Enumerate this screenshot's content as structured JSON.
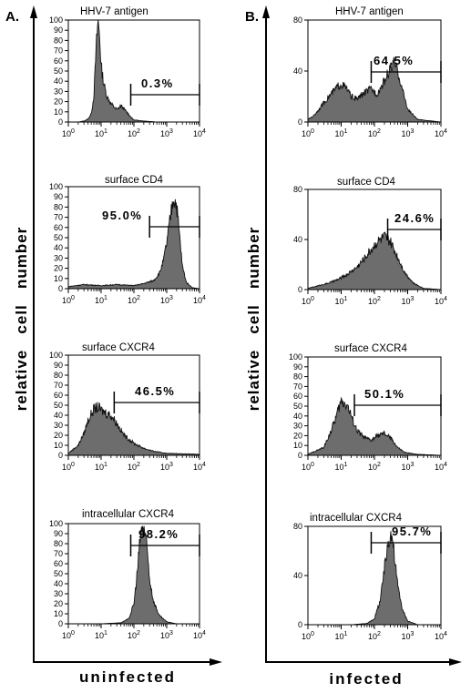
{
  "figure": {
    "panel_a_label": "A.",
    "panel_b_label": "B.",
    "y_axis_label": "relative   cell   number",
    "x_label_a": "uninfected",
    "x_label_b": "infected"
  },
  "chart_data": [
    {
      "type": "area",
      "panel": "A",
      "title": "HHV-7 antigen",
      "marker_label": "0.3%",
      "marker_range": [
        80,
        10000
      ],
      "xscale": "log",
      "xlim": [
        1,
        10000
      ],
      "ylim": [
        0,
        100
      ],
      "yticks": [
        0,
        10,
        20,
        30,
        40,
        50,
        60,
        70,
        80,
        90,
        100
      ],
      "xticks": [
        "10^0",
        "10^1",
        "10^2",
        "10^3",
        "10^4"
      ],
      "x": [
        1,
        2,
        3,
        4,
        5,
        6,
        7,
        8,
        9,
        10,
        12,
        15,
        20,
        30,
        40,
        60,
        80,
        100,
        200,
        500,
        10000
      ],
      "y": [
        0,
        0,
        1,
        3,
        8,
        25,
        70,
        100,
        85,
        55,
        38,
        25,
        18,
        12,
        16,
        10,
        5,
        2,
        1,
        0,
        0
      ]
    },
    {
      "type": "area",
      "panel": "A",
      "title": "surface CD4",
      "marker_label": "95.0%",
      "marker_range": [
        300,
        10000
      ],
      "xscale": "log",
      "xlim": [
        1,
        10000
      ],
      "ylim": [
        0,
        100
      ],
      "yticks": [
        0,
        10,
        20,
        30,
        40,
        50,
        60,
        70,
        80,
        90,
        100
      ],
      "xticks": [
        "10^0",
        "10^1",
        "10^2",
        "10^3",
        "10^4"
      ],
      "x": [
        1,
        3,
        10,
        30,
        100,
        200,
        400,
        600,
        800,
        1000,
        1300,
        1600,
        2000,
        2500,
        3000,
        4000,
        6000,
        10000
      ],
      "y": [
        2,
        4,
        3,
        4,
        3,
        5,
        8,
        15,
        28,
        45,
        70,
        90,
        82,
        50,
        22,
        6,
        1,
        0
      ]
    },
    {
      "type": "area",
      "panel": "A",
      "title": "surface CXCR4",
      "marker_label": "46.5%",
      "marker_range": [
        25,
        10000
      ],
      "xscale": "log",
      "xlim": [
        1,
        10000
      ],
      "ylim": [
        0,
        100
      ],
      "yticks": [
        0,
        10,
        20,
        30,
        40,
        50,
        60,
        70,
        80,
        90,
        100
      ],
      "xticks": [
        "10^0",
        "10^1",
        "10^2",
        "10^3",
        "10^4"
      ],
      "x": [
        1,
        2,
        3,
        4,
        6,
        8,
        10,
        15,
        20,
        30,
        50,
        100,
        200,
        400,
        1000,
        10000
      ],
      "y": [
        2,
        10,
        22,
        35,
        46,
        48,
        45,
        42,
        40,
        32,
        20,
        12,
        7,
        4,
        2,
        1
      ]
    },
    {
      "type": "area",
      "panel": "A",
      "title": "intracellular CXCR4",
      "marker_label": "98.2%",
      "marker_range": [
        80,
        10000
      ],
      "xscale": "log",
      "xlim": [
        1,
        10000
      ],
      "ylim": [
        0,
        100
      ],
      "yticks": [
        0,
        10,
        20,
        30,
        40,
        50,
        60,
        70,
        80,
        90,
        100
      ],
      "xticks": [
        "10^0",
        "10^1",
        "10^2",
        "10^3",
        "10^4"
      ],
      "x": [
        1,
        10,
        40,
        70,
        100,
        130,
        160,
        200,
        250,
        300,
        400,
        600,
        1000,
        2000,
        10000
      ],
      "y": [
        0,
        0,
        1,
        5,
        20,
        55,
        90,
        98,
        75,
        45,
        22,
        8,
        2,
        0,
        0
      ]
    },
    {
      "type": "area",
      "panel": "B",
      "title": "HHV-7 antigen",
      "marker_label": "64.5%",
      "marker_range": [
        80,
        10000
      ],
      "xscale": "log",
      "xlim": [
        1,
        10000
      ],
      "ylim": [
        0,
        80
      ],
      "yticks": [
        0,
        40,
        80
      ],
      "xticks": [
        "10^0",
        "10^1",
        "10^2",
        "10^3",
        "10^4"
      ],
      "x": [
        1,
        1.5,
        2,
        3,
        5,
        8,
        10,
        15,
        20,
        30,
        50,
        80,
        120,
        200,
        300,
        400,
        500,
        700,
        1000,
        2000,
        10000
      ],
      "y": [
        2,
        5,
        9,
        15,
        22,
        28,
        30,
        26,
        20,
        18,
        23,
        26,
        22,
        32,
        42,
        46,
        40,
        25,
        10,
        2,
        0
      ]
    },
    {
      "type": "area",
      "panel": "B",
      "title": "surface CD4",
      "marker_label": "24.6%",
      "marker_range": [
        250,
        10000
      ],
      "xscale": "log",
      "xlim": [
        1,
        10000
      ],
      "ylim": [
        0,
        80
      ],
      "yticks": [
        0,
        40,
        80
      ],
      "xticks": [
        "10^0",
        "10^1",
        "10^2",
        "10^3",
        "10^4"
      ],
      "x": [
        1,
        2,
        4,
        8,
        15,
        30,
        50,
        80,
        120,
        200,
        300,
        500,
        800,
        1500,
        3000,
        10000
      ],
      "y": [
        1,
        3,
        5,
        8,
        12,
        18,
        25,
        32,
        38,
        42,
        38,
        26,
        14,
        5,
        1,
        0
      ]
    },
    {
      "type": "area",
      "panel": "B",
      "title": "surface CXCR4",
      "marker_label": "50.1%",
      "marker_range": [
        25,
        10000
      ],
      "xscale": "log",
      "xlim": [
        1,
        10000
      ],
      "ylim": [
        0,
        100
      ],
      "yticks": [
        0,
        10,
        20,
        30,
        40,
        50,
        60,
        70,
        80,
        90,
        100
      ],
      "xticks": [
        "10^0",
        "10^1",
        "10^2",
        "10^3",
        "10^4"
      ],
      "x": [
        1,
        3,
        5,
        8,
        10,
        15,
        20,
        30,
        50,
        80,
        120,
        200,
        300,
        500,
        800,
        2000,
        10000
      ],
      "y": [
        1,
        8,
        25,
        45,
        55,
        52,
        40,
        25,
        18,
        15,
        20,
        22,
        18,
        8,
        3,
        1,
        0
      ]
    },
    {
      "type": "area",
      "panel": "B",
      "title": "intracellular CXCR4",
      "marker_label": "95.7%",
      "marker_range": [
        80,
        10000
      ],
      "xscale": "log",
      "xlim": [
        1,
        10000
      ],
      "ylim": [
        0,
        80
      ],
      "yticks": [
        0,
        40,
        80
      ],
      "xticks": [
        "10^0",
        "10^1",
        "10^2",
        "10^3",
        "10^4"
      ],
      "x": [
        1,
        20,
        60,
        100,
        150,
        200,
        250,
        300,
        350,
        400,
        500,
        700,
        1000,
        2000,
        10000
      ],
      "y": [
        0,
        0,
        1,
        5,
        20,
        45,
        65,
        75,
        70,
        55,
        32,
        12,
        3,
        0,
        0
      ]
    }
  ]
}
